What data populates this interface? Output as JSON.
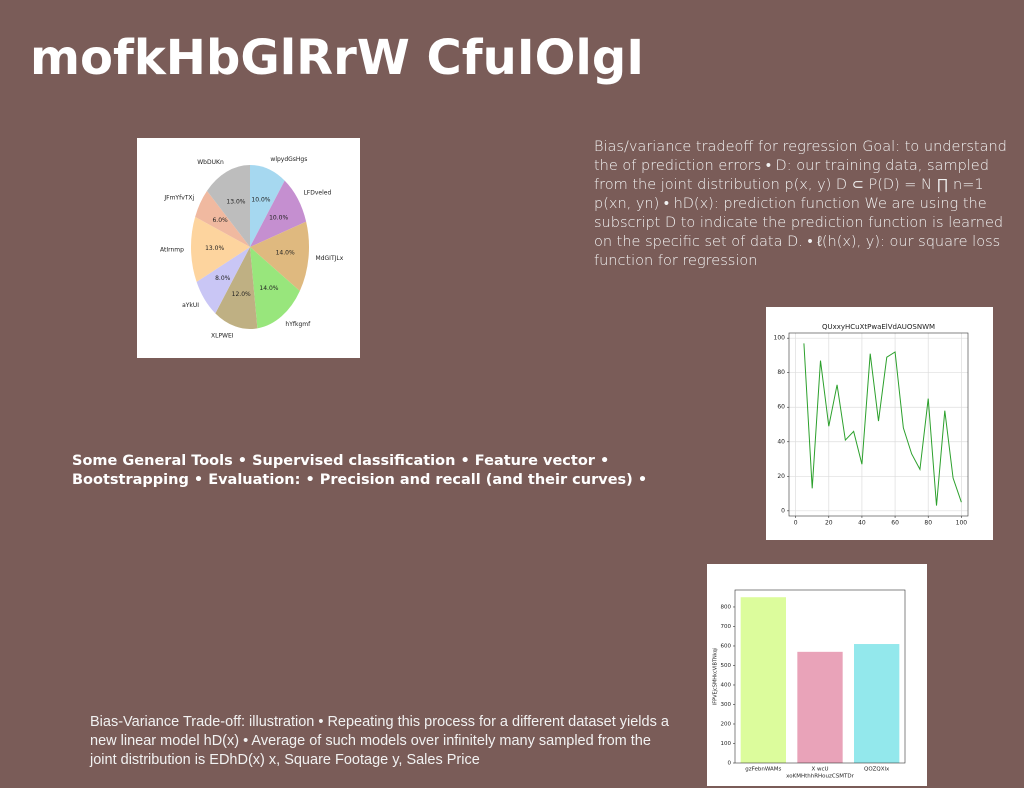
{
  "title": "mofkHbGlRrW CfuIOlgI",
  "texts": [
    "Bias/variance tradeoff for regression Goal: to understand the of prediction errors • D: our training data, sampled from the joint distribution p(x, y) D ⊂ P(D) = N ∏ n=1 p(xn, yn) • hD(x): prediction function We are using the subscript D to indicate the prediction function is learned on the specific set of data D. • ℓ(h(x), y): our square loss function for regression",
    "Some General Tools • Supervised classification • Feature vector • Bootstrapping • Evaluation: • Precision and recall (and their curves) •",
    "Bias-Variance Trade-off: illustration • Repeating this process for a different dataset yields a new linear model hD(x) • Average of such models over infinitely many sampled from the joint distribution is EDhD(x) x, Square Footage y, Sales Price"
  ],
  "chart_data": [
    {
      "type": "pie",
      "categories": [
        "wlpydGsHgs",
        "LFDveled",
        "MdGITJLx",
        "hYfkgmf",
        "XLPWEI",
        "aYkUI",
        "AtIrnmp",
        "JFmYfvTXj",
        "WbDUKn"
      ],
      "values": [
        10.0,
        10.0,
        14.0,
        14.0,
        12.0,
        8.0,
        13.0,
        6.0,
        13.0
      ],
      "value_labels": [
        "10.0%",
        "10.0%",
        "14.0%",
        "14.0%",
        "12.0%",
        "8.0%",
        "13.0%",
        "6.0%",
        "13.0%"
      ],
      "colors": [
        "#a6d8f0",
        "#c58fd0",
        "#dfb97f",
        "#98e67c",
        "#bfb083",
        "#c9c6f5",
        "#fdd49e",
        "#f0b9a0",
        "#bdbdbd"
      ]
    },
    {
      "type": "line",
      "title": "QUxxyHCuXtPwaElVdAUOSNWM",
      "x": [
        5,
        10,
        15,
        20,
        25,
        30,
        35,
        40,
        45,
        50,
        55,
        60,
        65,
        70,
        75,
        80,
        85,
        90,
        95,
        100
      ],
      "series": [
        {
          "color": "#2ca02c",
          "values": [
            97,
            13,
            87,
            49,
            73,
            41,
            46,
            27,
            91,
            52,
            89,
            92,
            48,
            33,
            24,
            65,
            3,
            58,
            19,
            5
          ]
        }
      ],
      "xlim": [
        -4,
        104
      ],
      "xticks": [
        0,
        20,
        40,
        60,
        80,
        100
      ],
      "ylim": [
        -3,
        103
      ],
      "yticks": [
        0,
        20,
        40,
        60,
        80,
        100
      ],
      "grid": true
    },
    {
      "type": "bar",
      "x_label": "xoKMHthhRHouzCSMTDr",
      "y_label": "lFPVEjcSMHkcVlBTNkqi",
      "categories": [
        "gzFebnWAMs",
        "X wcU",
        "QOZQXlx"
      ],
      "values": [
        850,
        570,
        610
      ],
      "colors": [
        "#dcfc9c",
        "#e9a3b9",
        "#93e8ec"
      ],
      "ylim": [
        0,
        887
      ],
      "yticks": [
        0,
        100,
        200,
        300,
        400,
        500,
        600,
        700,
        800
      ]
    }
  ]
}
